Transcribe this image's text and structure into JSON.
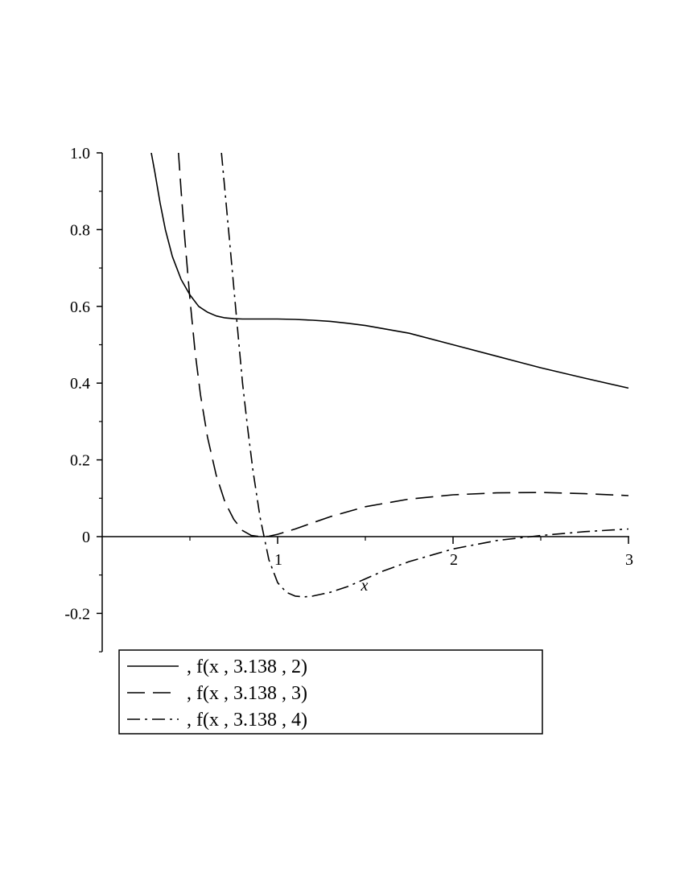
{
  "chart_data": {
    "type": "line",
    "title": "",
    "xlabel": "x",
    "ylabel": "",
    "xlim": [
      0,
      3
    ],
    "ylim": [
      -0.3,
      1.0
    ],
    "grid": false,
    "legend_placement": "bottom",
    "x_ticks": [
      {
        "value": 1,
        "label": "1"
      },
      {
        "value": 2,
        "label": "2"
      },
      {
        "value": 3,
        "label": "3"
      }
    ],
    "y_ticks": [
      {
        "value": 1.0,
        "label": "1.0"
      },
      {
        "value": 0.8,
        "label": "0.8"
      },
      {
        "value": 0.6,
        "label": "0.6"
      },
      {
        "value": 0.4,
        "label": "0.4"
      },
      {
        "value": 0.2,
        "label": "0.2"
      },
      {
        "value": 0,
        "label": "0"
      },
      {
        "value": -0.2,
        "label": "-0.2"
      }
    ],
    "series": [
      {
        "name": ", f(x , 3.138 , 2)",
        "style": "solid",
        "x": [
          0.28,
          0.3,
          0.33,
          0.36,
          0.4,
          0.45,
          0.5,
          0.55,
          0.6,
          0.65,
          0.7,
          0.75,
          0.8,
          0.9,
          1.0,
          1.1,
          1.2,
          1.3,
          1.4,
          1.5,
          1.75,
          2.0,
          2.25,
          2.5,
          2.75,
          3.0
        ],
        "y": [
          1.0,
          0.95,
          0.87,
          0.8,
          0.73,
          0.67,
          0.63,
          0.6,
          0.585,
          0.575,
          0.57,
          0.568,
          0.567,
          0.567,
          0.567,
          0.566,
          0.564,
          0.561,
          0.556,
          0.55,
          0.53,
          0.5,
          0.47,
          0.44,
          0.413,
          0.387
        ]
      },
      {
        "name": ", f(x , 3.138 , 3)",
        "style": "dash",
        "x": [
          0.435,
          0.45,
          0.47,
          0.5,
          0.53,
          0.56,
          0.6,
          0.65,
          0.7,
          0.75,
          0.8,
          0.85,
          0.9,
          0.95,
          1.0,
          1.1,
          1.2,
          1.3,
          1.5,
          1.75,
          2.0,
          2.25,
          2.5,
          2.75,
          3.0
        ],
        "y": [
          1.0,
          0.9,
          0.78,
          0.62,
          0.48,
          0.37,
          0.26,
          0.16,
          0.09,
          0.045,
          0.016,
          0.003,
          0.0,
          0.001,
          0.006,
          0.02,
          0.036,
          0.052,
          0.078,
          0.098,
          0.109,
          0.114,
          0.115,
          0.112,
          0.107
        ]
      },
      {
        "name": ", f(x , 3.138 , 4)",
        "style": "dashdot",
        "x": [
          0.68,
          0.7,
          0.72,
          0.75,
          0.78,
          0.8,
          0.83,
          0.86,
          0.9,
          0.95,
          1.0,
          1.05,
          1.1,
          1.15,
          1.2,
          1.25,
          1.3,
          1.4,
          1.5,
          1.6,
          1.75,
          2.0,
          2.25,
          2.5,
          2.75,
          3.0
        ],
        "y": [
          1.0,
          0.9,
          0.8,
          0.65,
          0.5,
          0.4,
          0.28,
          0.17,
          0.05,
          -0.06,
          -0.12,
          -0.145,
          -0.155,
          -0.157,
          -0.155,
          -0.15,
          -0.145,
          -0.13,
          -0.11,
          -0.09,
          -0.065,
          -0.032,
          -0.01,
          0.003,
          0.013,
          0.02
        ]
      }
    ]
  }
}
